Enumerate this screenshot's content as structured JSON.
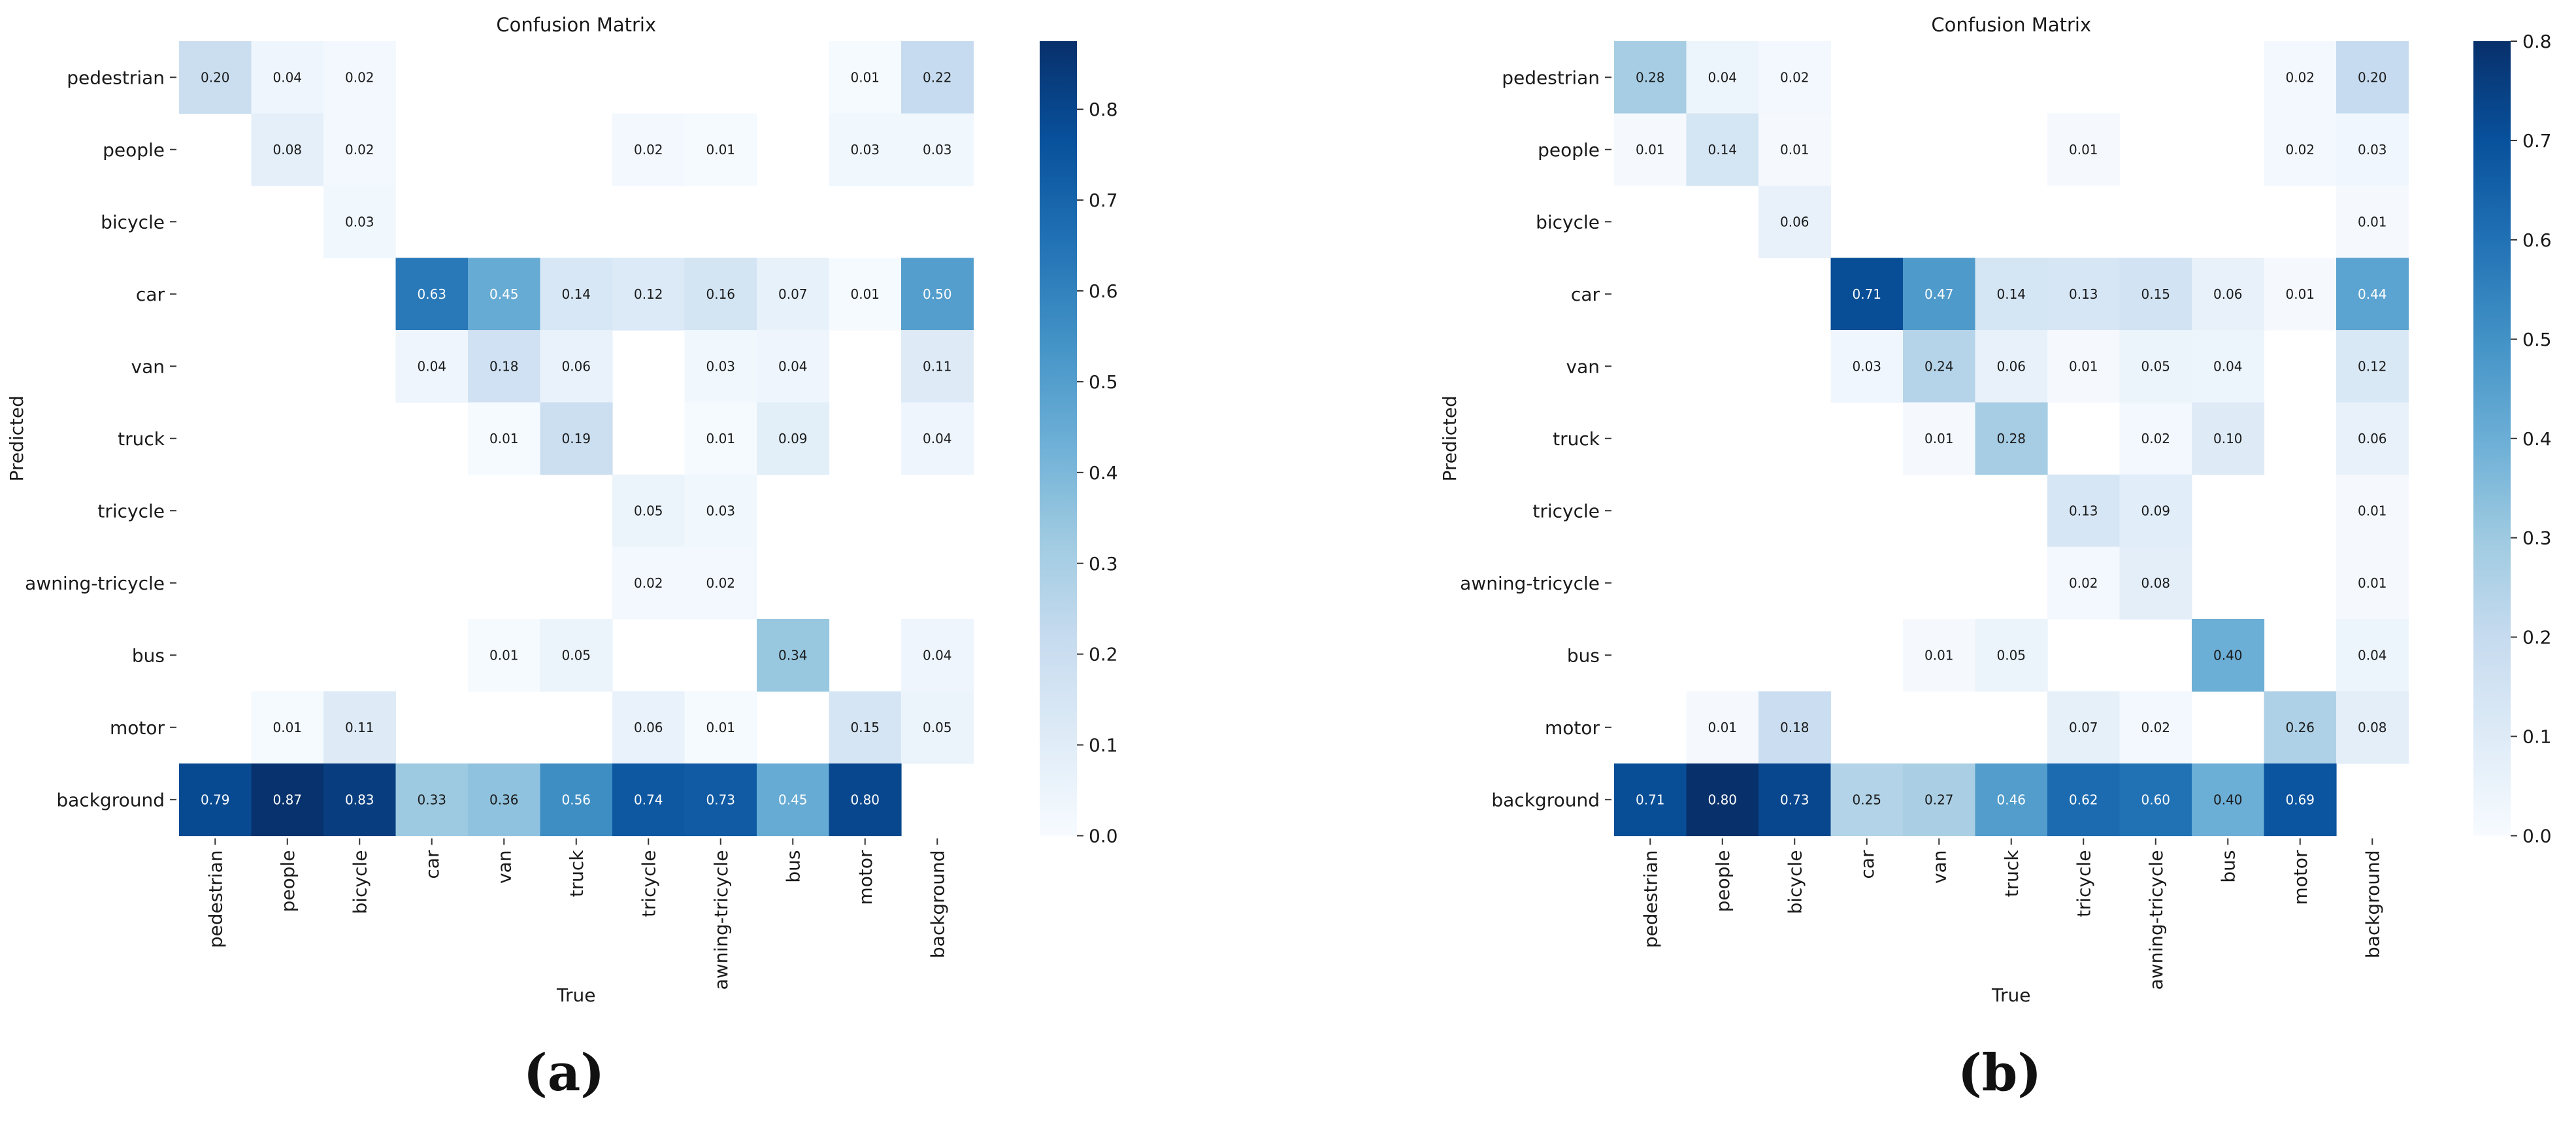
{
  "chart_data": [
    {
      "type": "heatmap",
      "title": "Confusion Matrix",
      "xlabel": "True",
      "ylabel": "Predicted",
      "caption": "(a)",
      "x_categories": [
        "pedestrian",
        "people",
        "bicycle",
        "car",
        "van",
        "truck",
        "tricycle",
        "awning-tricycle",
        "bus",
        "motor",
        "background"
      ],
      "y_categories": [
        "pedestrian",
        "people",
        "bicycle",
        "car",
        "van",
        "truck",
        "tricycle",
        "awning-tricycle",
        "bus",
        "motor",
        "background"
      ],
      "values": [
        [
          0.2,
          0.04,
          0.02,
          null,
          null,
          null,
          null,
          null,
          null,
          0.01,
          0.22
        ],
        [
          null,
          0.08,
          0.02,
          null,
          null,
          null,
          0.02,
          0.01,
          null,
          0.03,
          0.03
        ],
        [
          null,
          null,
          0.03,
          null,
          null,
          null,
          null,
          null,
          null,
          null,
          null
        ],
        [
          null,
          null,
          null,
          0.63,
          0.45,
          0.14,
          0.12,
          0.16,
          0.07,
          0.01,
          0.5
        ],
        [
          null,
          null,
          null,
          0.04,
          0.18,
          0.06,
          null,
          0.03,
          0.04,
          null,
          0.11
        ],
        [
          null,
          null,
          null,
          null,
          0.01,
          0.19,
          null,
          0.01,
          0.09,
          null,
          0.04
        ],
        [
          null,
          null,
          null,
          null,
          null,
          null,
          0.05,
          0.03,
          null,
          null,
          null
        ],
        [
          null,
          null,
          null,
          null,
          null,
          null,
          0.02,
          0.02,
          null,
          null,
          null
        ],
        [
          null,
          null,
          null,
          null,
          0.01,
          0.05,
          null,
          null,
          0.34,
          null,
          0.04
        ],
        [
          null,
          0.01,
          0.11,
          null,
          null,
          null,
          0.06,
          0.01,
          null,
          0.15,
          0.05
        ],
        [
          0.79,
          0.87,
          0.83,
          0.33,
          0.36,
          0.56,
          0.74,
          0.73,
          0.45,
          0.8,
          null
        ]
      ],
      "colorbar": {
        "min": 0.0,
        "max": 0.875,
        "ticks": [
          "0.0",
          "0.1",
          "0.2",
          "0.3",
          "0.4",
          "0.5",
          "0.6",
          "0.7",
          "0.8"
        ]
      }
    },
    {
      "type": "heatmap",
      "title": "Confusion Matrix",
      "xlabel": "True",
      "ylabel": "Predicted",
      "caption": "(b)",
      "x_categories": [
        "pedestrian",
        "people",
        "bicycle",
        "car",
        "van",
        "truck",
        "tricycle",
        "awning-tricycle",
        "bus",
        "motor",
        "background"
      ],
      "y_categories": [
        "pedestrian",
        "people",
        "bicycle",
        "car",
        "van",
        "truck",
        "tricycle",
        "awning-tricycle",
        "bus",
        "motor",
        "background"
      ],
      "values": [
        [
          0.28,
          0.04,
          0.02,
          null,
          null,
          null,
          null,
          null,
          null,
          0.02,
          0.2
        ],
        [
          0.01,
          0.14,
          0.01,
          null,
          null,
          null,
          0.01,
          null,
          null,
          0.02,
          0.03
        ],
        [
          null,
          null,
          0.06,
          null,
          null,
          null,
          null,
          null,
          null,
          null,
          0.01
        ],
        [
          null,
          null,
          null,
          0.71,
          0.47,
          0.14,
          0.13,
          0.15,
          0.06,
          0.01,
          0.44
        ],
        [
          null,
          null,
          null,
          0.03,
          0.24,
          0.06,
          0.01,
          0.05,
          0.04,
          null,
          0.12
        ],
        [
          null,
          null,
          null,
          null,
          0.01,
          0.28,
          null,
          0.02,
          0.1,
          null,
          0.06
        ],
        [
          null,
          null,
          null,
          null,
          null,
          null,
          0.13,
          0.09,
          null,
          null,
          0.01
        ],
        [
          null,
          null,
          null,
          null,
          null,
          null,
          0.02,
          0.08,
          null,
          null,
          0.01
        ],
        [
          null,
          null,
          null,
          null,
          0.01,
          0.05,
          null,
          null,
          0.4,
          null,
          0.04
        ],
        [
          null,
          0.01,
          0.18,
          null,
          null,
          null,
          0.07,
          0.02,
          null,
          0.26,
          0.08
        ],
        [
          0.71,
          0.8,
          0.73,
          0.25,
          0.27,
          0.46,
          0.62,
          0.6,
          0.4,
          0.69,
          null
        ]
      ],
      "colorbar": {
        "min": 0.0,
        "max": 0.8,
        "ticks": [
          "0.0",
          "0.1",
          "0.2",
          "0.3",
          "0.4",
          "0.5",
          "0.6",
          "0.7",
          "0.8"
        ]
      }
    }
  ],
  "colors": {
    "cmap": [
      "#f7fbff",
      "#deebf7",
      "#c6dbef",
      "#9ecae1",
      "#6baed6",
      "#4292c6",
      "#2171b5",
      "#08519c",
      "#08306b"
    ]
  }
}
